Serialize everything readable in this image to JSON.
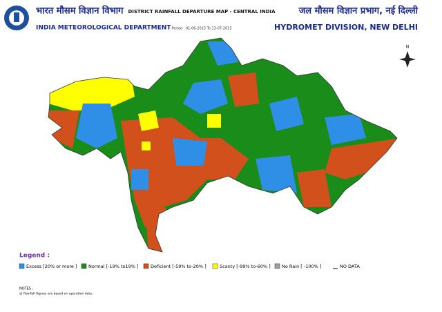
{
  "header": {
    "hindi_left": "भारत मौसम विज्ञान विभाग",
    "org": "INDIA METEOROLOGICAL DEPARTMENT",
    "title": "DISTRICT RAINFALL DEPARTURE MAP - CENTRAL INDIA",
    "period": "Period : 01-06-2015 To 13-07-2015",
    "hindi_right": "जल मौसम विज्ञान प्रभाग, नई दिल्ली",
    "division": "HYDROMET DIVISION, NEW DELHI"
  },
  "map": {
    "north": "N"
  },
  "legend": {
    "title": "Legend :",
    "items": [
      {
        "label": "Excess [20% or more ]",
        "color": "#2f8fe6"
      },
      {
        "label": "Normal [-19% to19% ]",
        "color": "#1a8c1a"
      },
      {
        "label": "Deficient [-59% to-20% ]",
        "color": "#d2501c"
      },
      {
        "label": "Scanty [-99% to-60% ]",
        "color": "#ffff00"
      },
      {
        "label": "No Rain [ -100% ]",
        "color": "#a0a0a0"
      },
      {
        "label": "NO DATA",
        "color": "#ffffff"
      }
    ]
  },
  "notes": {
    "title": "NOTES :",
    "lines": [
      "a) Rainfall figures are based on operation data."
    ]
  }
}
